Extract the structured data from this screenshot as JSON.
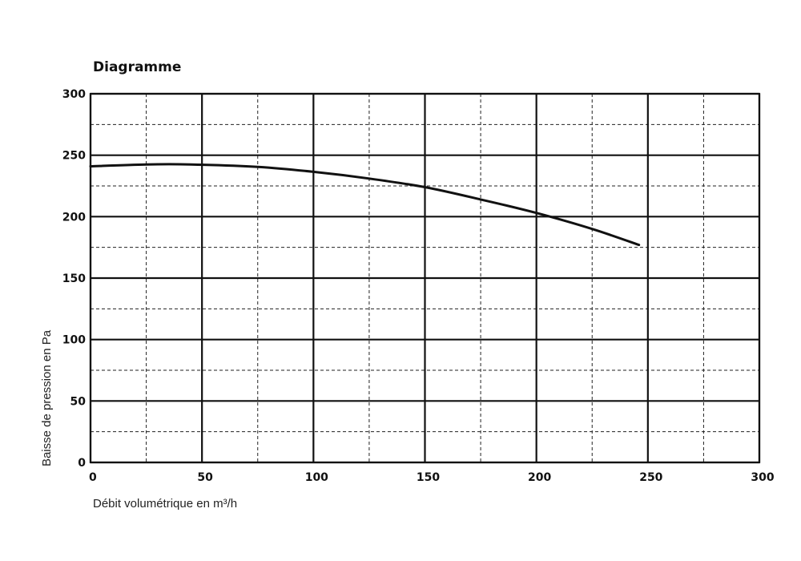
{
  "chart_data": {
    "type": "line",
    "title": "Diagramme",
    "xlabel": "Débit volumétrique en m³/h",
    "ylabel": "Baisse de pression en Pa",
    "xlim": [
      0,
      300
    ],
    "ylim": [
      0,
      300
    ],
    "x_ticks": [
      0,
      50,
      100,
      150,
      200,
      250,
      300
    ],
    "y_ticks": [
      0,
      50,
      100,
      150,
      200,
      250,
      300
    ],
    "x_minor_step": 25,
    "y_minor_step": 25,
    "grid": true,
    "legend": "none",
    "series": [
      {
        "x": [
          0,
          25,
          45,
          75,
          100,
          125,
          150,
          175,
          200,
          225,
          246
        ],
        "y": [
          241,
          242.5,
          242.5,
          240.5,
          236.5,
          231,
          224,
          214,
          203,
          190,
          177
        ]
      }
    ]
  }
}
